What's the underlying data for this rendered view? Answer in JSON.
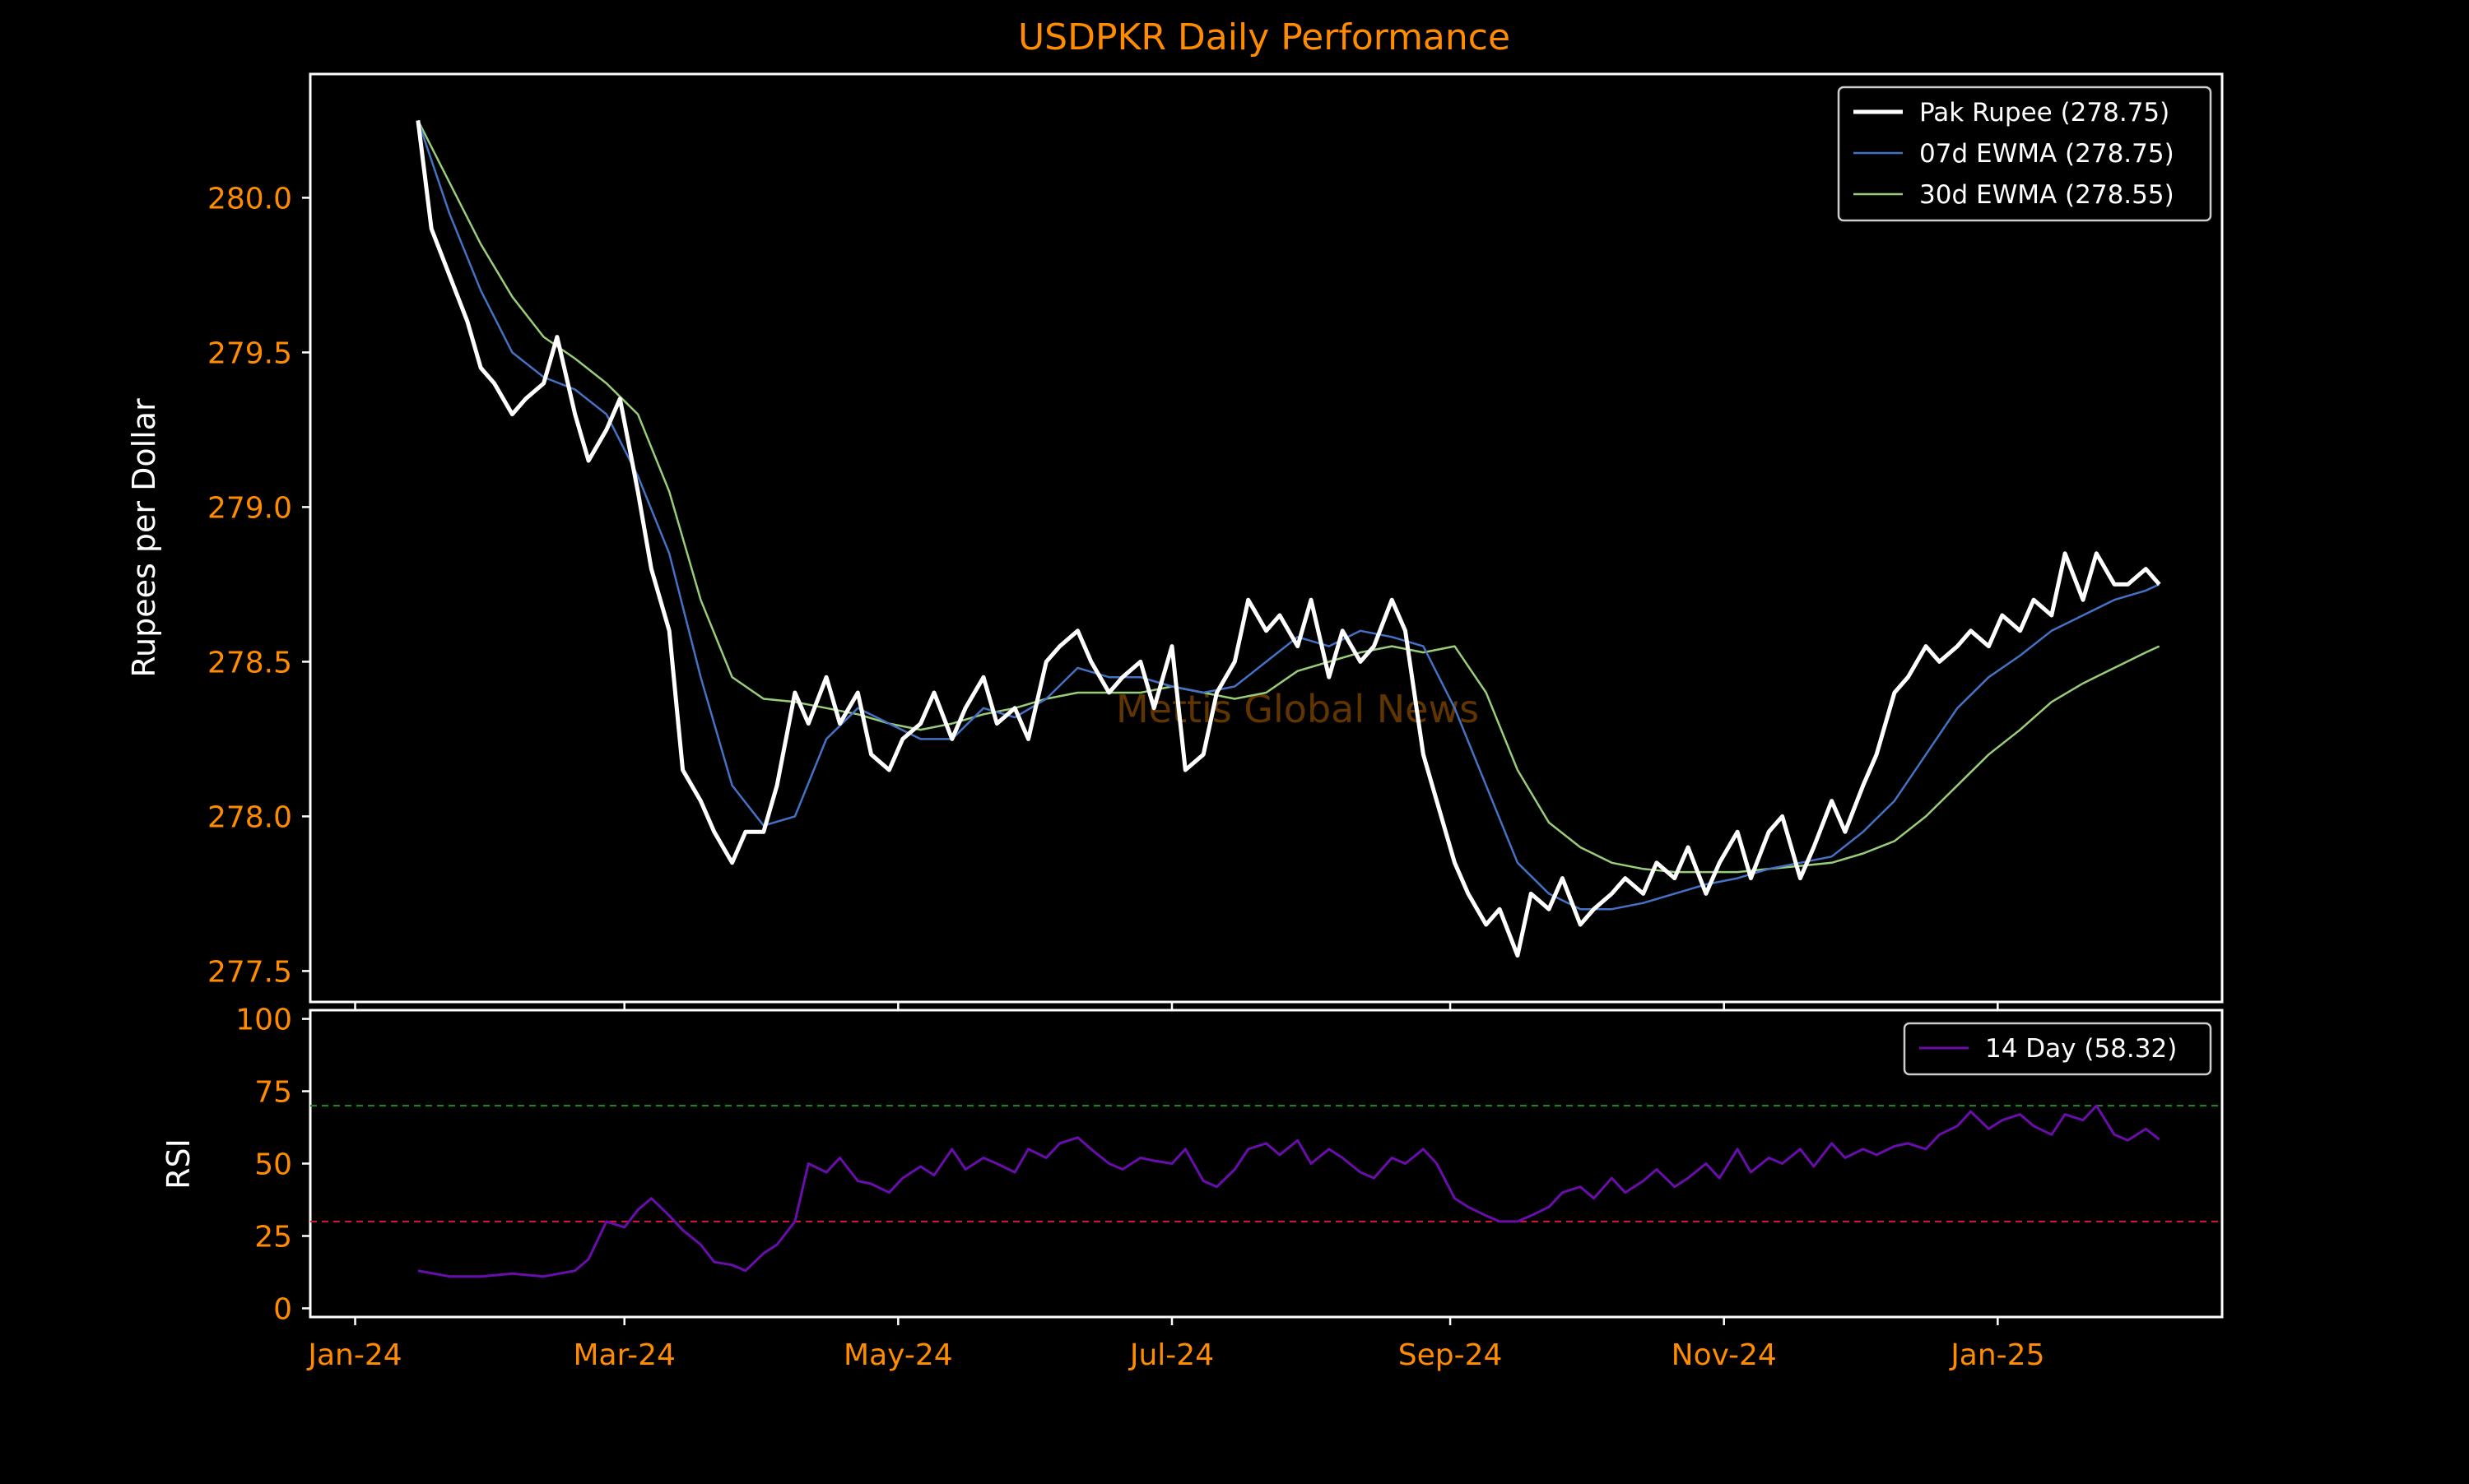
{
  "chart_data": [
    {
      "type": "line",
      "title": "USDPKR Daily Performance",
      "ylabel": "Rupees per Dollar",
      "xlabel": "",
      "ylim": [
        277.4,
        280.4
      ],
      "yticks": [
        277.5,
        278.0,
        278.5,
        279.0,
        279.5,
        280.0
      ],
      "ytick_labels": [
        "277.5",
        "278.0",
        "278.5",
        "279.0",
        "279.5",
        "280.0"
      ],
      "xlim": [
        "2023-12-22",
        "2025-02-20"
      ],
      "xticks": [
        "2024-01-01",
        "2024-03-01",
        "2024-05-01",
        "2024-07-01",
        "2024-09-01",
        "2024-11-01",
        "2025-01-01"
      ],
      "xtick_labels": [
        "Jan-24",
        "Mar-24",
        "May-24",
        "Jul-24",
        "Sep-24",
        "Nov-24",
        "Jan-25"
      ],
      "grid": false,
      "legend_position": "top-right",
      "watermark": "Mettis Global News",
      "colors": {
        "background": "#000000",
        "axes_edge": "#ffffff",
        "tick_text": "#ff8c00",
        "title": "#ff8c00",
        "label": "#ffffff"
      },
      "series": [
        {
          "name": "Pak Rupee (278.75)",
          "color": "#ffffff",
          "x": [
            "2024-01-15",
            "2024-01-18",
            "2024-01-22",
            "2024-01-26",
            "2024-01-29",
            "2024-02-01",
            "2024-02-05",
            "2024-02-08",
            "2024-02-12",
            "2024-02-15",
            "2024-02-19",
            "2024-02-22",
            "2024-02-26",
            "2024-02-29",
            "2024-03-04",
            "2024-03-07",
            "2024-03-11",
            "2024-03-14",
            "2024-03-18",
            "2024-03-21",
            "2024-03-25",
            "2024-03-28",
            "2024-04-01",
            "2024-04-04",
            "2024-04-08",
            "2024-04-11",
            "2024-04-15",
            "2024-04-18",
            "2024-04-22",
            "2024-04-25",
            "2024-04-29",
            "2024-05-02",
            "2024-05-06",
            "2024-05-09",
            "2024-05-13",
            "2024-05-16",
            "2024-05-20",
            "2024-05-23",
            "2024-05-27",
            "2024-05-30",
            "2024-06-03",
            "2024-06-06",
            "2024-06-10",
            "2024-06-13",
            "2024-06-17",
            "2024-06-20",
            "2024-06-24",
            "2024-06-27",
            "2024-07-01",
            "2024-07-04",
            "2024-07-08",
            "2024-07-11",
            "2024-07-15",
            "2024-07-18",
            "2024-07-22",
            "2024-07-25",
            "2024-07-29",
            "2024-08-01",
            "2024-08-05",
            "2024-08-08",
            "2024-08-12",
            "2024-08-15",
            "2024-08-19",
            "2024-08-22",
            "2024-08-26",
            "2024-08-29",
            "2024-09-02",
            "2024-09-05",
            "2024-09-09",
            "2024-09-12",
            "2024-09-16",
            "2024-09-19",
            "2024-09-23",
            "2024-09-26",
            "2024-09-30",
            "2024-10-03",
            "2024-10-07",
            "2024-10-10",
            "2024-10-14",
            "2024-10-17",
            "2024-10-21",
            "2024-10-24",
            "2024-10-28",
            "2024-10-31",
            "2024-11-04",
            "2024-11-07",
            "2024-11-11",
            "2024-11-14",
            "2024-11-18",
            "2024-11-21",
            "2024-11-25",
            "2024-11-28",
            "2024-12-02",
            "2024-12-05",
            "2024-12-09",
            "2024-12-12",
            "2024-12-16",
            "2024-12-19",
            "2024-12-23",
            "2024-12-26",
            "2024-12-30",
            "2025-01-02",
            "2025-01-06",
            "2025-01-09",
            "2025-01-13",
            "2025-01-16",
            "2025-01-20",
            "2025-01-23",
            "2025-01-27",
            "2025-01-30",
            "2025-02-03",
            "2025-02-06"
          ],
          "y": [
            280.25,
            279.9,
            279.75,
            279.6,
            279.45,
            279.4,
            279.3,
            279.35,
            279.4,
            279.55,
            279.3,
            279.15,
            279.25,
            279.35,
            279.05,
            278.8,
            278.6,
            278.15,
            278.05,
            277.95,
            277.85,
            277.95,
            277.95,
            278.1,
            278.4,
            278.3,
            278.45,
            278.3,
            278.4,
            278.2,
            278.15,
            278.25,
            278.3,
            278.4,
            278.25,
            278.35,
            278.45,
            278.3,
            278.35,
            278.25,
            278.5,
            278.55,
            278.6,
            278.5,
            278.4,
            278.45,
            278.5,
            278.35,
            278.55,
            278.15,
            278.2,
            278.4,
            278.5,
            278.7,
            278.6,
            278.65,
            278.55,
            278.7,
            278.45,
            278.6,
            278.5,
            278.55,
            278.7,
            278.6,
            278.2,
            278.05,
            277.85,
            277.75,
            277.65,
            277.7,
            277.55,
            277.75,
            277.7,
            277.8,
            277.65,
            277.7,
            277.75,
            277.8,
            277.75,
            277.85,
            277.8,
            277.9,
            277.75,
            277.85,
            277.95,
            277.8,
            277.95,
            278.0,
            277.8,
            277.9,
            278.05,
            277.95,
            278.1,
            278.2,
            278.4,
            278.45,
            278.55,
            278.5,
            278.55,
            278.6,
            278.55,
            278.65,
            278.6,
            278.7,
            278.65,
            278.85,
            278.7,
            278.85,
            278.75,
            278.75,
            278.8,
            278.75
          ]
        },
        {
          "name": "07d EWMA (278.75)",
          "color": "#4472c4",
          "x": [
            "2024-01-15",
            "2024-01-22",
            "2024-01-29",
            "2024-02-05",
            "2024-02-12",
            "2024-02-19",
            "2024-02-26",
            "2024-03-04",
            "2024-03-11",
            "2024-03-18",
            "2024-03-25",
            "2024-04-01",
            "2024-04-08",
            "2024-04-15",
            "2024-04-22",
            "2024-04-29",
            "2024-05-06",
            "2024-05-13",
            "2024-05-20",
            "2024-05-27",
            "2024-06-03",
            "2024-06-10",
            "2024-06-17",
            "2024-06-24",
            "2024-07-01",
            "2024-07-08",
            "2024-07-15",
            "2024-07-22",
            "2024-07-29",
            "2024-08-05",
            "2024-08-12",
            "2024-08-19",
            "2024-08-26",
            "2024-09-02",
            "2024-09-09",
            "2024-09-16",
            "2024-09-23",
            "2024-09-30",
            "2024-10-07",
            "2024-10-14",
            "2024-10-21",
            "2024-10-28",
            "2024-11-04",
            "2024-11-11",
            "2024-11-18",
            "2024-11-25",
            "2024-12-02",
            "2024-12-09",
            "2024-12-16",
            "2024-12-23",
            "2024-12-30",
            "2025-01-06",
            "2025-01-13",
            "2025-01-20",
            "2025-01-27",
            "2025-02-03",
            "2025-02-06"
          ],
          "y": [
            280.25,
            279.95,
            279.7,
            279.5,
            279.42,
            279.38,
            279.3,
            279.1,
            278.85,
            278.45,
            278.1,
            277.97,
            278.0,
            278.25,
            278.35,
            278.3,
            278.25,
            278.25,
            278.35,
            278.32,
            278.38,
            278.48,
            278.45,
            278.45,
            278.42,
            278.4,
            278.42,
            278.5,
            278.58,
            278.55,
            278.6,
            278.58,
            278.55,
            278.35,
            278.1,
            277.85,
            277.75,
            277.7,
            277.7,
            277.72,
            277.75,
            277.78,
            277.8,
            277.83,
            277.85,
            277.87,
            277.95,
            278.05,
            278.2,
            278.35,
            278.45,
            278.52,
            278.6,
            278.65,
            278.7,
            278.73,
            278.75
          ]
        },
        {
          "name": "30d EWMA (278.55)",
          "color": "#9acd7a",
          "x": [
            "2024-01-15",
            "2024-01-22",
            "2024-01-29",
            "2024-02-05",
            "2024-02-12",
            "2024-02-19",
            "2024-02-26",
            "2024-03-04",
            "2024-03-11",
            "2024-03-18",
            "2024-03-25",
            "2024-04-01",
            "2024-04-08",
            "2024-04-15",
            "2024-04-22",
            "2024-04-29",
            "2024-05-06",
            "2024-05-13",
            "2024-05-20",
            "2024-05-27",
            "2024-06-03",
            "2024-06-10",
            "2024-06-17",
            "2024-06-24",
            "2024-07-01",
            "2024-07-08",
            "2024-07-15",
            "2024-07-22",
            "2024-07-29",
            "2024-08-05",
            "2024-08-12",
            "2024-08-19",
            "2024-08-26",
            "2024-09-02",
            "2024-09-09",
            "2024-09-16",
            "2024-09-23",
            "2024-09-30",
            "2024-10-07",
            "2024-10-14",
            "2024-10-21",
            "2024-10-28",
            "2024-11-04",
            "2024-11-11",
            "2024-11-18",
            "2024-11-25",
            "2024-12-02",
            "2024-12-09",
            "2024-12-16",
            "2024-12-23",
            "2024-12-30",
            "2025-01-06",
            "2025-01-13",
            "2025-01-20",
            "2025-01-27",
            "2025-02-03",
            "2025-02-06"
          ],
          "y": [
            280.25,
            280.05,
            279.85,
            279.68,
            279.55,
            279.48,
            279.4,
            279.3,
            279.05,
            278.7,
            278.45,
            278.38,
            278.37,
            278.35,
            278.33,
            278.3,
            278.28,
            278.3,
            278.33,
            278.35,
            278.38,
            278.4,
            278.4,
            278.4,
            278.42,
            278.4,
            278.38,
            278.4,
            278.47,
            278.5,
            278.53,
            278.55,
            278.53,
            278.55,
            278.4,
            278.15,
            277.98,
            277.9,
            277.85,
            277.83,
            277.82,
            277.82,
            277.82,
            277.83,
            277.84,
            277.85,
            277.88,
            277.92,
            278.0,
            278.1,
            278.2,
            278.28,
            278.37,
            278.43,
            278.48,
            278.53,
            278.55
          ]
        }
      ]
    },
    {
      "type": "line",
      "title": "",
      "ylabel": "RSI",
      "xlabel": "",
      "ylim": [
        -3,
        103
      ],
      "yticks": [
        0,
        25,
        50,
        75,
        100
      ],
      "ytick_labels": [
        "0",
        "25",
        "50",
        "75",
        "100"
      ],
      "xlim": [
        "2023-12-22",
        "2025-02-20"
      ],
      "xticks": [
        "2024-01-01",
        "2024-03-01",
        "2024-05-01",
        "2024-07-01",
        "2024-09-01",
        "2024-11-01",
        "2025-01-01"
      ],
      "xtick_labels": [
        "Jan-24",
        "Mar-24",
        "May-24",
        "Jul-24",
        "Sep-24",
        "Nov-24",
        "Jan-25"
      ],
      "grid": false,
      "legend_position": "top-right",
      "reference_lines": [
        {
          "y": 70,
          "color": "#228b22",
          "style": "dashed"
        },
        {
          "y": 30,
          "color": "#dc143c",
          "style": "dashed"
        }
      ],
      "series": [
        {
          "name": "14 Day (58.32)",
          "color": "#6a0dad",
          "x": [
            "2024-01-15",
            "2024-01-22",
            "2024-01-29",
            "2024-02-05",
            "2024-02-12",
            "2024-02-19",
            "2024-02-22",
            "2024-02-26",
            "2024-03-01",
            "2024-03-04",
            "2024-03-07",
            "2024-03-11",
            "2024-03-14",
            "2024-03-18",
            "2024-03-21",
            "2024-03-25",
            "2024-03-28",
            "2024-04-01",
            "2024-04-04",
            "2024-04-08",
            "2024-04-11",
            "2024-04-15",
            "2024-04-18",
            "2024-04-22",
            "2024-04-25",
            "2024-04-29",
            "2024-05-02",
            "2024-05-06",
            "2024-05-09",
            "2024-05-13",
            "2024-05-16",
            "2024-05-20",
            "2024-05-23",
            "2024-05-27",
            "2024-05-30",
            "2024-06-03",
            "2024-06-06",
            "2024-06-10",
            "2024-06-13",
            "2024-06-17",
            "2024-06-20",
            "2024-06-24",
            "2024-06-27",
            "2024-07-01",
            "2024-07-04",
            "2024-07-08",
            "2024-07-11",
            "2024-07-15",
            "2024-07-18",
            "2024-07-22",
            "2024-07-25",
            "2024-07-29",
            "2024-08-01",
            "2024-08-05",
            "2024-08-08",
            "2024-08-12",
            "2024-08-15",
            "2024-08-19",
            "2024-08-22",
            "2024-08-26",
            "2024-08-29",
            "2024-09-02",
            "2024-09-05",
            "2024-09-09",
            "2024-09-12",
            "2024-09-16",
            "2024-09-19",
            "2024-09-23",
            "2024-09-26",
            "2024-09-30",
            "2024-10-03",
            "2024-10-07",
            "2024-10-10",
            "2024-10-14",
            "2024-10-17",
            "2024-10-21",
            "2024-10-24",
            "2024-10-28",
            "2024-10-31",
            "2024-11-04",
            "2024-11-07",
            "2024-11-11",
            "2024-11-14",
            "2024-11-18",
            "2024-11-21",
            "2024-11-25",
            "2024-11-28",
            "2024-12-02",
            "2024-12-05",
            "2024-12-09",
            "2024-12-12",
            "2024-12-16",
            "2024-12-19",
            "2024-12-23",
            "2024-12-26",
            "2024-12-30",
            "2025-01-02",
            "2025-01-06",
            "2025-01-09",
            "2025-01-13",
            "2025-01-16",
            "2025-01-20",
            "2025-01-23",
            "2025-01-27",
            "2025-01-30",
            "2025-02-03",
            "2025-02-06"
          ],
          "y": [
            13,
            11,
            11,
            12,
            11,
            13,
            17,
            30,
            28,
            34,
            38,
            32,
            27,
            22,
            16,
            15,
            13,
            19,
            22,
            30,
            50,
            47,
            52,
            44,
            43,
            40,
            45,
            49,
            46,
            55,
            48,
            52,
            50,
            47,
            55,
            52,
            57,
            59,
            55,
            50,
            48,
            52,
            51,
            50,
            55,
            44,
            42,
            48,
            55,
            57,
            53,
            58,
            50,
            55,
            52,
            47,
            45,
            52,
            50,
            55,
            50,
            38,
            35,
            32,
            30,
            30,
            32,
            35,
            40,
            42,
            38,
            45,
            40,
            44,
            48,
            42,
            45,
            50,
            45,
            55,
            47,
            52,
            50,
            55,
            49,
            57,
            52,
            55,
            53,
            56,
            57,
            55,
            60,
            63,
            68,
            62,
            65,
            67,
            63,
            60,
            67,
            65,
            70,
            60,
            58,
            62,
            58.32
          ]
        }
      ]
    }
  ]
}
